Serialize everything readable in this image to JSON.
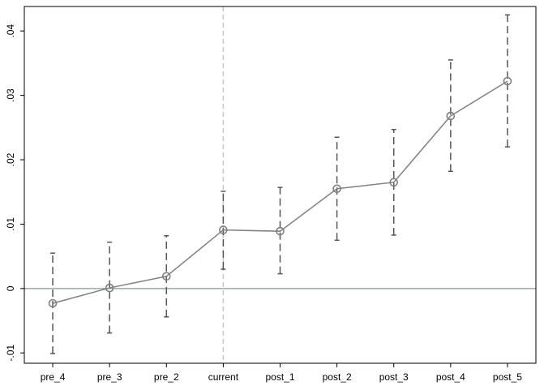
{
  "chart_data": {
    "type": "coefplot",
    "categories": [
      "pre_4",
      "pre_3",
      "pre_2",
      "current",
      "post_1",
      "post_2",
      "post_3",
      "post_4",
      "post_5"
    ],
    "values": [
      -0.0023,
      0.0001,
      0.0019,
      0.0091,
      0.0089,
      0.0155,
      0.0165,
      0.0268,
      0.0322
    ],
    "ci_low": [
      -0.0101,
      -0.0069,
      -0.0044,
      0.003,
      0.0023,
      0.0075,
      0.0083,
      0.0182,
      0.022
    ],
    "ci_high": [
      0.0055,
      0.0072,
      0.0082,
      0.0151,
      0.0157,
      0.0235,
      0.0247,
      0.0355,
      0.0425
    ],
    "color": "#808080",
    "ci_color": "#555555",
    "ylim": [
      -0.0116,
      0.0438
    ],
    "yticks": [
      {
        "value": -0.01,
        "label": "-.01"
      },
      0,
      {
        "value": 0.01,
        "label": ".01"
      },
      {
        "value": 0.02,
        "label": ".02"
      },
      {
        "value": 0.03,
        "label": ".03"
      },
      {
        "value": 0.04,
        "label": ".04"
      }
    ],
    "hline": 0,
    "hline_color": "#7d97a8",
    "vline": "current",
    "vline_color": "#c8c8c8"
  }
}
